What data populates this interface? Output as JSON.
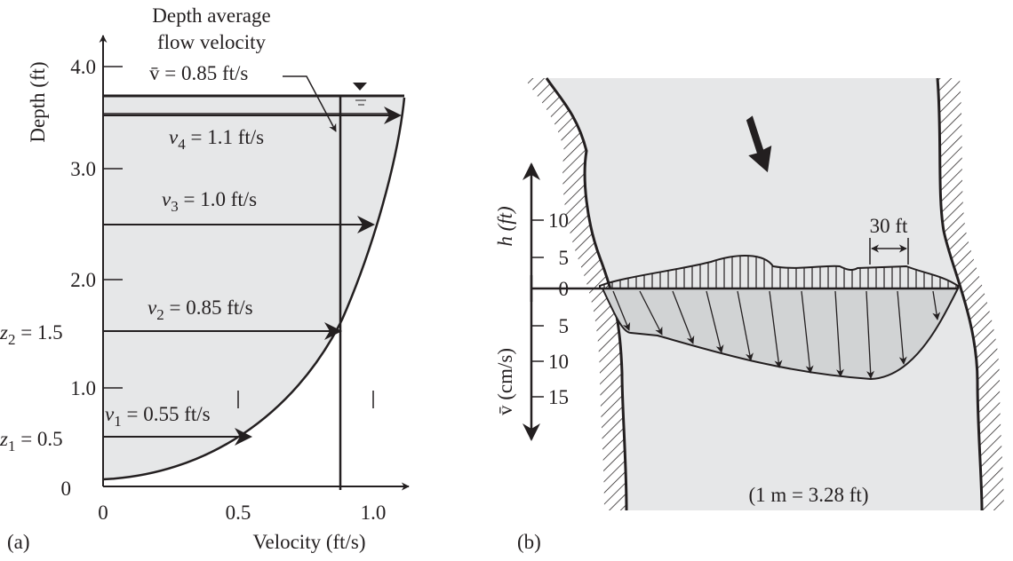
{
  "panel_a": {
    "label": "(a)",
    "y_axis_title": "Depth (ft)",
    "x_axis_title": "Velocity (ft/s)",
    "y_ticks": [
      "4.0",
      "3.0",
      "2.0",
      "1.0",
      "0"
    ],
    "x_ticks": [
      "0",
      "0.5",
      "1.0"
    ],
    "average_note": [
      "Depth average",
      "flow velocity"
    ],
    "average_label": "v̄ = 0.85 ft/s",
    "velocity_labels": [
      {
        "symbol": "v",
        "sub": "4",
        "rest": " = 1.1 ft/s"
      },
      {
        "symbol": "v",
        "sub": "3",
        "rest": " = 1.0 ft/s"
      },
      {
        "symbol": "v",
        "sub": "2",
        "rest": " = 0.85 ft/s"
      },
      {
        "symbol": "v",
        "sub": "1",
        "rest": " = 0.55 ft/s"
      }
    ],
    "depth_labels": [
      {
        "symbol": "z",
        "sub": "2",
        "rest": " = 1.5"
      },
      {
        "symbol": "z",
        "sub": "1",
        "rest": " = 0.5"
      }
    ]
  },
  "panel_b": {
    "label": "(b)",
    "h_axis_title": "h (ft)",
    "v_axis_title": "v̄ (cm/s)",
    "h_ticks": [
      "10",
      "5",
      "0"
    ],
    "v_ticks": [
      "5",
      "10",
      "15"
    ],
    "scale_label": "30 ft",
    "conversion": "(1 m = 3.28 ft)"
  }
}
